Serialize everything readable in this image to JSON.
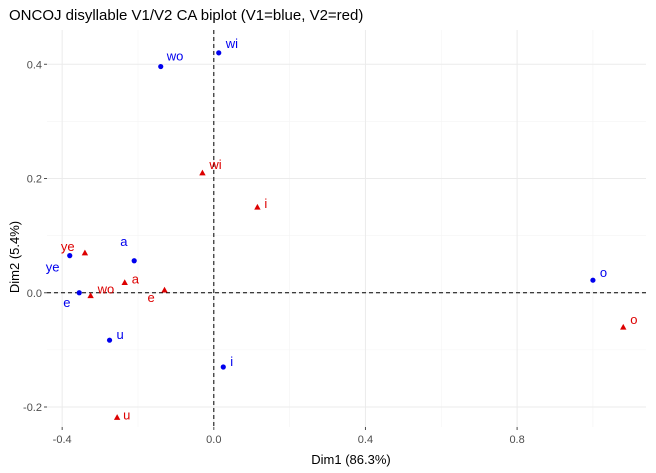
{
  "chart_data": {
    "type": "scatter",
    "title": "ONCOJ disyllable V1/V2 CA biplot (V1=blue, V2=red)",
    "xlabel": "Dim1 (86.3%)",
    "ylabel": "Dim2 (5.4%)",
    "xlim": [
      -0.44,
      1.14
    ],
    "ylim": [
      -0.235,
      0.46
    ],
    "xticks": [
      -0.4,
      0.0,
      0.4,
      0.8
    ],
    "yticks": [
      -0.2,
      0.0,
      0.2,
      0.4
    ],
    "xtick_labels": [
      "-0.4",
      "0.0",
      "0.4",
      "0.8"
    ],
    "ytick_labels": [
      "-0.2",
      "0.0",
      "0.2",
      "0.4"
    ],
    "reference_lines": {
      "x": 0,
      "y": 0
    },
    "grid": true,
    "series": [
      {
        "marker": "circle",
        "color": "#0000ee",
        "points": [
          {
            "label": "wi",
            "x": 0.013,
            "y": 0.42
          },
          {
            "label": "wo",
            "x": -0.14,
            "y": 0.396
          },
          {
            "label": "ye",
            "x": -0.38,
            "y": 0.065
          },
          {
            "label": "a",
            "x": -0.21,
            "y": 0.056
          },
          {
            "label": "e",
            "x": -0.355,
            "y": 0.0
          },
          {
            "label": "u",
            "x": -0.275,
            "y": -0.083
          },
          {
            "label": "i",
            "x": 0.025,
            "y": -0.13
          },
          {
            "label": "o",
            "x": 1.0,
            "y": 0.022
          }
        ]
      },
      {
        "marker": "triangle",
        "color": "#dd0000",
        "points": [
          {
            "label": "wi",
            "x": -0.03,
            "y": 0.21
          },
          {
            "label": "i",
            "x": 0.115,
            "y": 0.15
          },
          {
            "label": "ye",
            "x": -0.34,
            "y": 0.07
          },
          {
            "label": "a",
            "x": -0.235,
            "y": 0.018
          },
          {
            "label": "wo",
            "x": -0.325,
            "y": -0.005
          },
          {
            "label": "e",
            "x": -0.13,
            "y": 0.005
          },
          {
            "label": "o",
            "x": 1.08,
            "y": -0.06
          },
          {
            "label": "u",
            "x": -0.255,
            "y": -0.218
          }
        ]
      }
    ]
  }
}
